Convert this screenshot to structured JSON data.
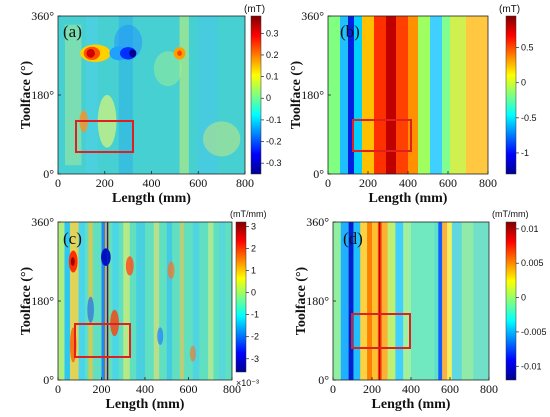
{
  "figure": {
    "panels": [
      {
        "panel_label": "(a)",
        "cb_unit": "(mT)",
        "cb_exponent": ""
      },
      {
        "panel_label": "(b)",
        "cb_unit": "(mT)",
        "cb_exponent": ""
      },
      {
        "panel_label": "(c)",
        "cb_unit": "(mT/mm)",
        "cb_exponent": "×10⁻³"
      },
      {
        "panel_label": "(d)",
        "cb_unit": "(mT/mm)",
        "cb_exponent": ""
      }
    ]
  },
  "chart_data": [
    {
      "type": "heatmap",
      "panel": "(a)",
      "xlabel": "Length (mm)",
      "ylabel": "Toolface (°)",
      "xlim": [
        0,
        800
      ],
      "ylim": [
        0,
        360
      ],
      "x_ticks": [
        "0",
        "200",
        "400",
        "600",
        "800"
      ],
      "y_ticks": [
        "0°",
        "180°",
        "360°"
      ],
      "colorbar": {
        "unit": "(mT)",
        "range": [
          -0.35,
          0.38
        ],
        "ticks": [
          "0.3",
          "0.2",
          "0.1",
          "0",
          "-0.1",
          "-0.2",
          "-0.3"
        ]
      },
      "box": {
        "x": [
          75,
          360
        ],
        "y": [
          55,
          140
        ]
      }
    },
    {
      "type": "heatmap",
      "panel": "(b)",
      "xlabel": "Length (mm)",
      "ylabel": "Toolface (°)",
      "xlim": [
        0,
        800
      ],
      "ylim": [
        0,
        360
      ],
      "x_ticks": [
        "0",
        "200",
        "400",
        "600",
        "800"
      ],
      "y_ticks": [
        "0°",
        "180°",
        "360°"
      ],
      "colorbar": {
        "unit": "(mT)",
        "range": [
          -1.3,
          0.95
        ],
        "ticks": [
          "0.5",
          "0",
          "-0.5",
          "-1"
        ]
      },
      "box": {
        "x": [
          100,
          400
        ],
        "y": [
          55,
          140
        ]
      }
    },
    {
      "type": "heatmap",
      "panel": "(c)",
      "xlabel": "Length (mm)",
      "ylabel": "Toolface (°)",
      "xlim": [
        0,
        800
      ],
      "ylim": [
        0,
        360
      ],
      "x_ticks": [
        "0",
        "200",
        "400",
        "600",
        "800"
      ],
      "y_ticks": [
        "0°",
        "180°",
        "360°"
      ],
      "colorbar": {
        "unit": "(mT/mm)",
        "range": [
          -3.6,
          3.2
        ],
        "ticks": [
          "3",
          "2",
          "1",
          "0",
          "-1",
          "-2",
          "-3"
        ],
        "exponent": "×10⁻³"
      },
      "box": {
        "x": [
          75,
          360
        ],
        "y": [
          55,
          140
        ]
      }
    },
    {
      "type": "heatmap",
      "panel": "(d)",
      "xlabel": "Length (mm)",
      "ylabel": "Toolface (°)",
      "xlim": [
        0,
        800
      ],
      "ylim": [
        0,
        360
      ],
      "x_ticks": [
        "0",
        "200",
        "400",
        "600",
        "800"
      ],
      "y_ticks": [
        "0°",
        "180°",
        "360°"
      ],
      "colorbar": {
        "unit": "(mT/mm)",
        "range": [
          -0.012,
          0.011
        ],
        "ticks": [
          "0.01",
          "0.005",
          "0",
          "-0.005",
          "-0.01"
        ]
      },
      "box": {
        "x": [
          75,
          400
        ],
        "y": [
          55,
          140
        ]
      }
    }
  ]
}
